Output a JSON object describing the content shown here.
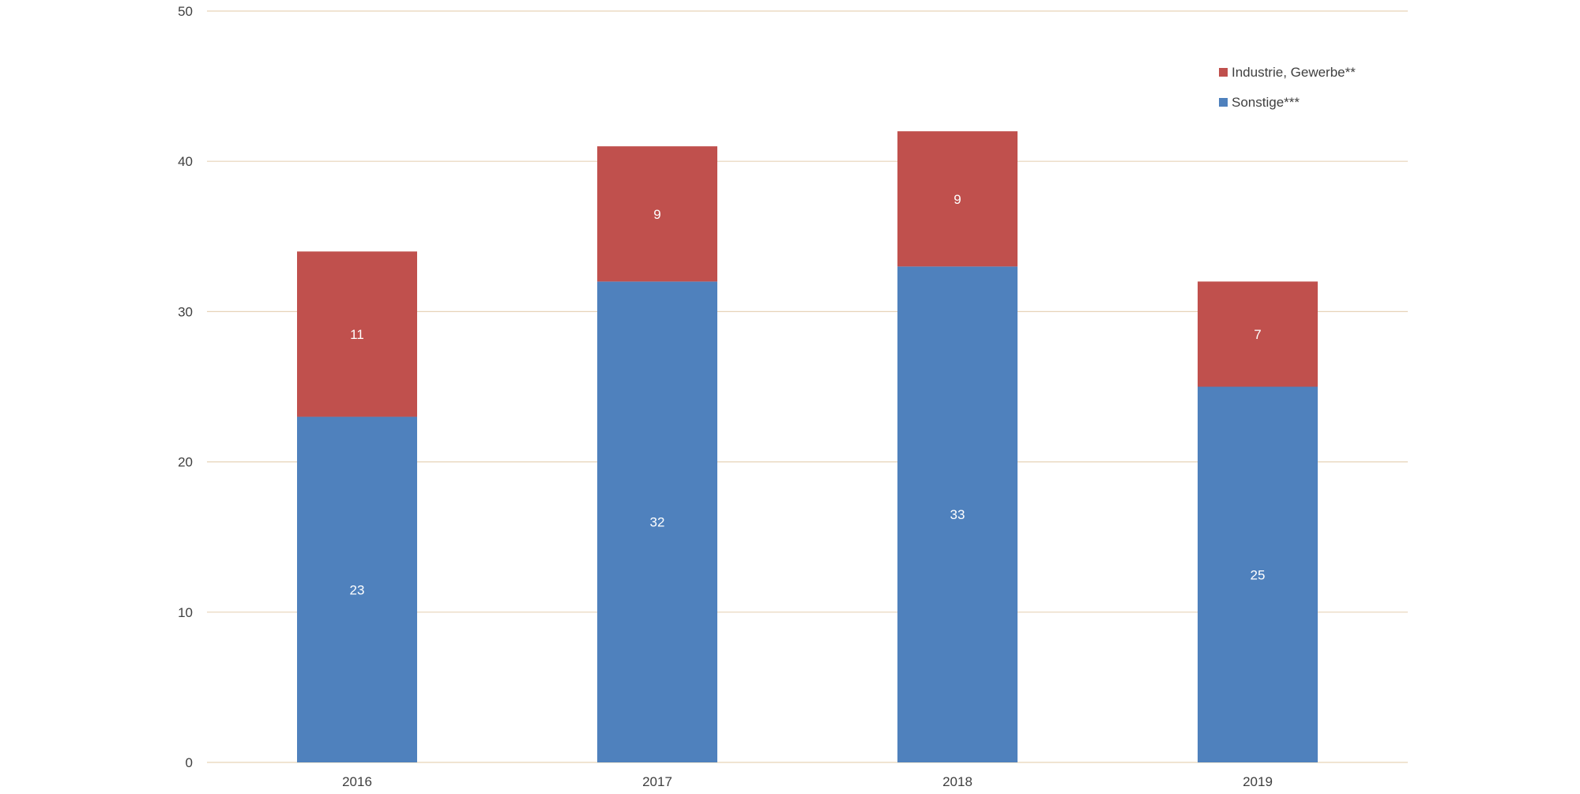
{
  "chart_data": {
    "type": "bar",
    "stacked": true,
    "categories": [
      "2016",
      "2017",
      "2018",
      "2019"
    ],
    "series": [
      {
        "name": "Sonstige***",
        "values": [
          23,
          32,
          33,
          25
        ],
        "color": "#4f81bd"
      },
      {
        "name": "Industrie, Gewerbe**",
        "values": [
          11,
          9,
          9,
          7
        ],
        "color": "#c0504d"
      }
    ],
    "ylim": [
      0,
      50
    ],
    "y_ticks": [
      0,
      10,
      20,
      30,
      40,
      50
    ],
    "grid": true,
    "legend_position": "top-right",
    "legend_order": [
      "Industrie, Gewerbe**",
      "Sonstige***"
    ],
    "data_labels": true
  }
}
